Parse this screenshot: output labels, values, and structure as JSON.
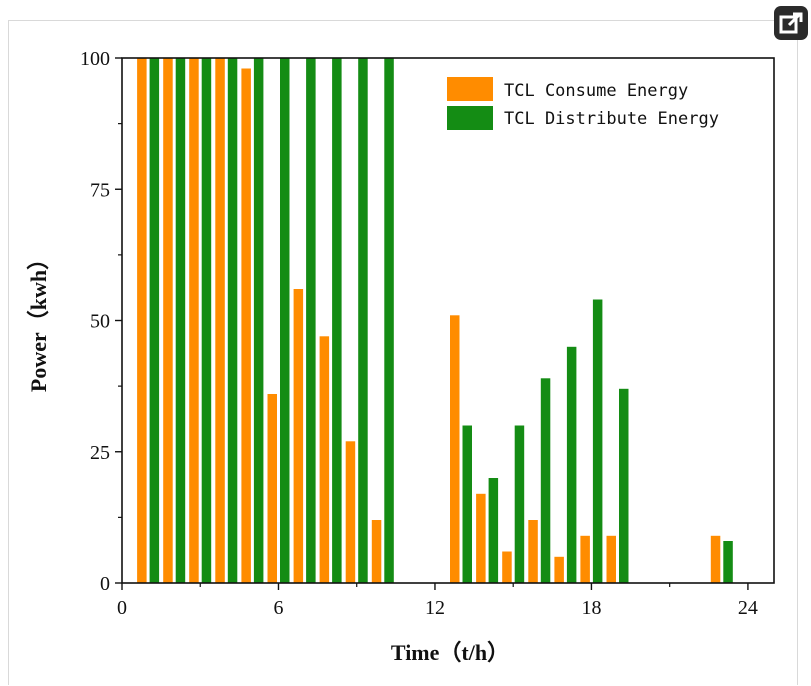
{
  "ui": {
    "expand_icon": "external-expand-icon"
  },
  "chart_data": {
    "type": "bar",
    "xlabel": "Time（t/h）",
    "ylabel": "Power（kwh）",
    "xlim": [
      0,
      25
    ],
    "ylim": [
      0,
      100
    ],
    "xticks": [
      0,
      6,
      12,
      18,
      24
    ],
    "yticks": [
      0,
      25,
      50,
      75,
      100
    ],
    "grid": false,
    "legend_position": "top-right",
    "x": [
      1,
      2,
      3,
      4,
      5,
      6,
      7,
      8,
      9,
      10,
      11,
      12,
      13,
      14,
      15,
      16,
      17,
      18,
      19,
      20,
      21,
      22,
      23,
      24
    ],
    "series": [
      {
        "name": "TCL Consume Energy",
        "color": "#ff8c00",
        "values": [
          100,
          100,
          100,
          100,
          98,
          36,
          56,
          47,
          27,
          12,
          0,
          0,
          51,
          17,
          6,
          12,
          5,
          9,
          9,
          0,
          0,
          0,
          9,
          0
        ]
      },
      {
        "name": "TCL Distribute Energy",
        "color": "#148c14",
        "values": [
          100,
          100,
          100,
          100,
          100,
          100,
          100,
          100,
          100,
          100,
          0,
          0,
          30,
          20,
          30,
          39,
          45,
          54,
          37,
          0,
          0,
          0,
          8,
          0
        ]
      }
    ]
  }
}
